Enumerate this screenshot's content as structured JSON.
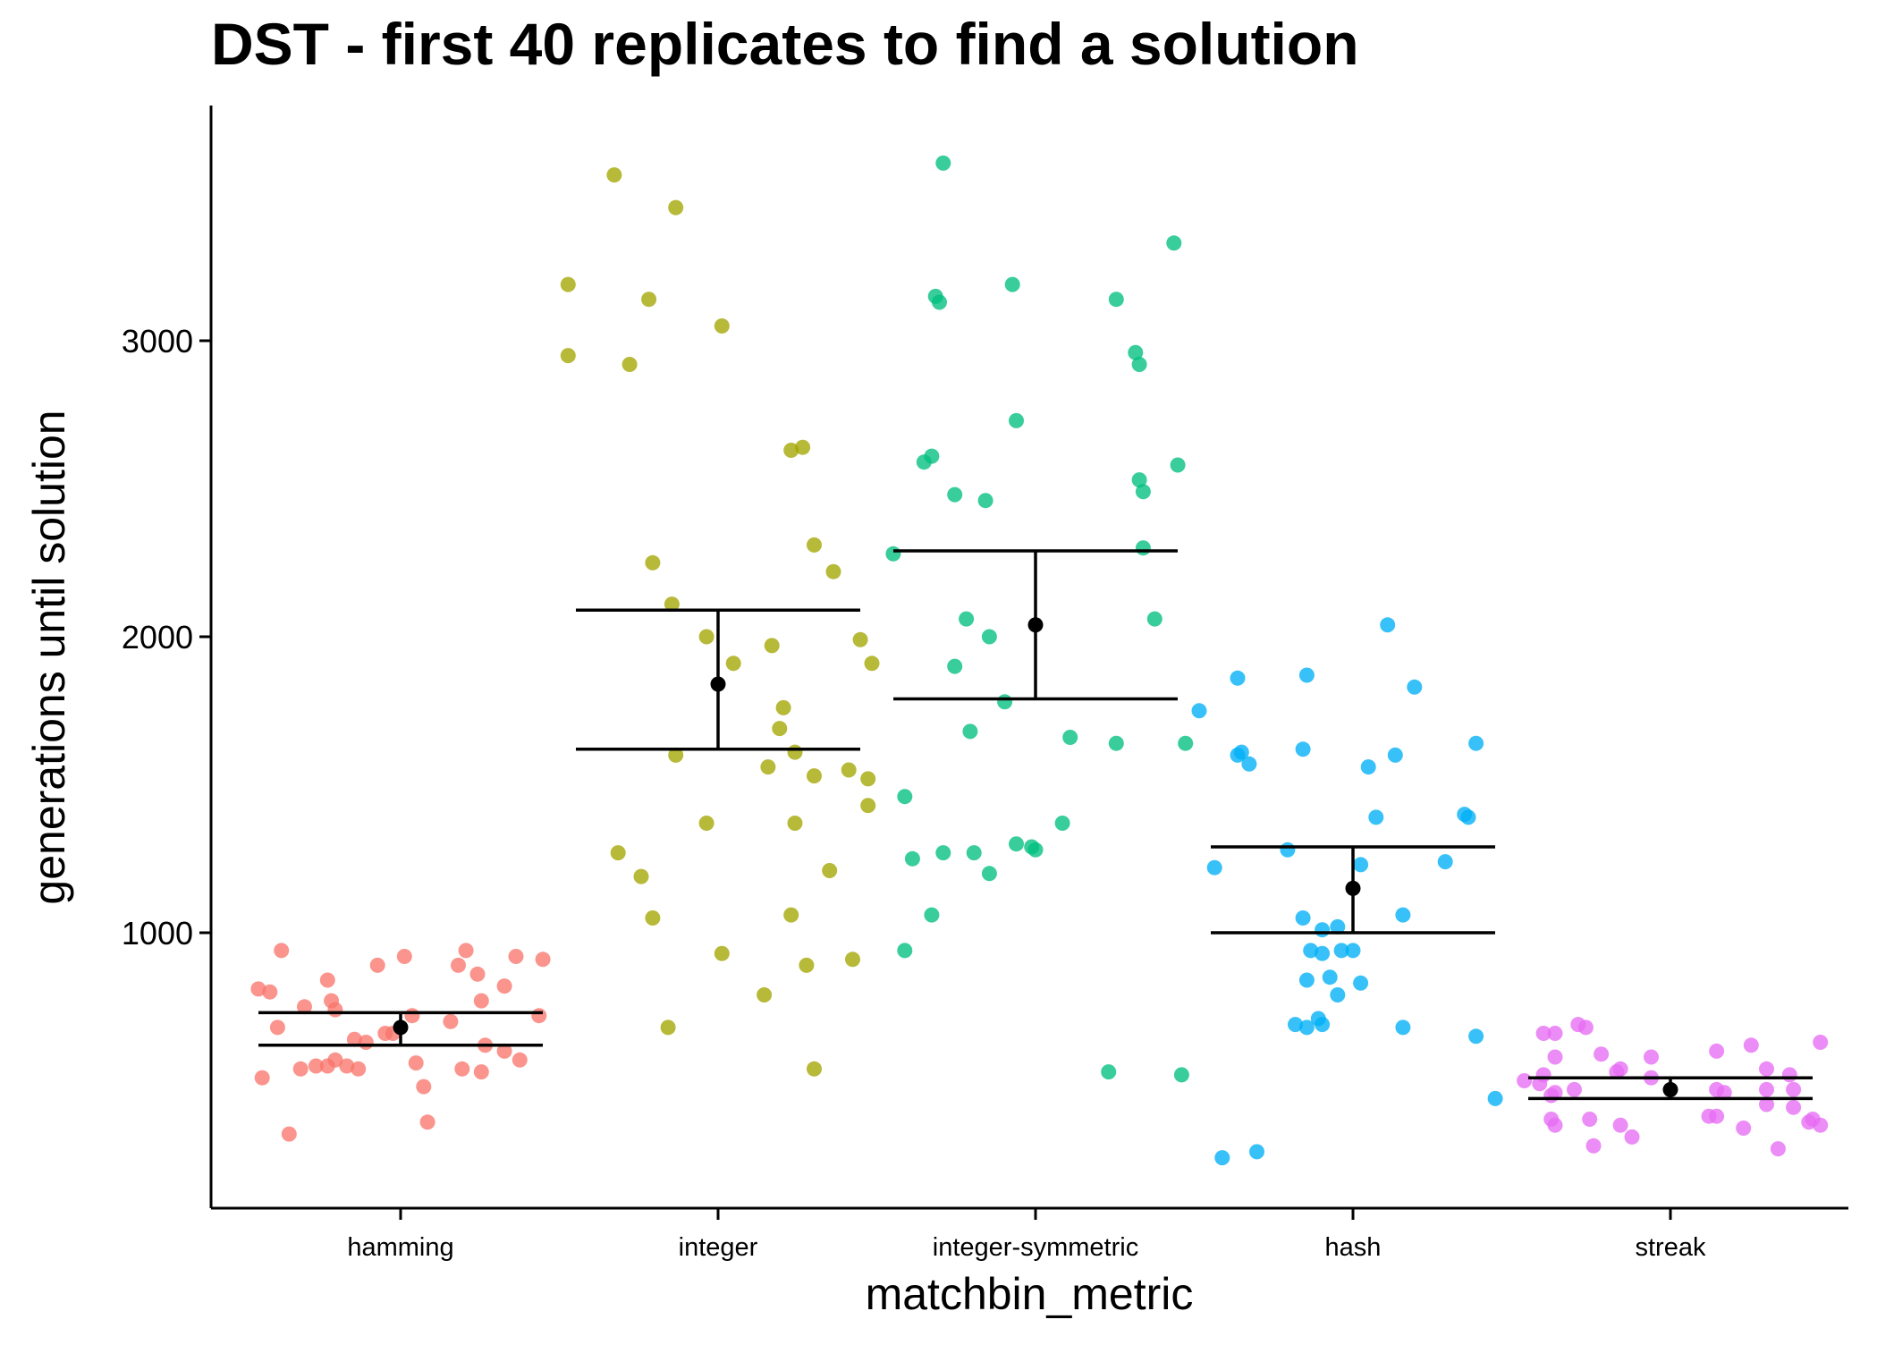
{
  "chart_data": {
    "type": "scatter",
    "title": "DST - first 40 replicates to find a solution",
    "xlabel": "matchbin_metric",
    "ylabel": "generations until solution",
    "categories": [
      "hamming",
      "integer",
      "integer-symmetric",
      "hash",
      "streak"
    ],
    "yticks": [
      1000,
      2000,
      3000
    ],
    "ylim": [
      90,
      3800
    ],
    "grid": false,
    "legend": "none",
    "series": [
      {
        "name": "hamming",
        "color": "#F8766D",
        "mean": 680,
        "ci_low": 620,
        "ci_high": 730,
        "points": [
          [
            -0.37,
            810
          ],
          [
            -0.34,
            800
          ],
          [
            -0.31,
            940
          ],
          [
            -0.32,
            680
          ],
          [
            -0.25,
            750
          ],
          [
            -0.19,
            840
          ],
          [
            -0.18,
            770
          ],
          [
            -0.17,
            740
          ],
          [
            -0.12,
            640
          ],
          [
            -0.09,
            630
          ],
          [
            -0.06,
            890
          ],
          [
            -0.04,
            660
          ],
          [
            0.01,
            920
          ],
          [
            0.03,
            720
          ],
          [
            0.15,
            890
          ],
          [
            0.17,
            940
          ],
          [
            0.2,
            860
          ],
          [
            0.21,
            770
          ],
          [
            0.27,
            820
          ],
          [
            0.3,
            920
          ],
          [
            0.36,
            720
          ],
          [
            0.37,
            910
          ],
          [
            -0.36,
            510
          ],
          [
            -0.29,
            320
          ],
          [
            -0.26,
            540
          ],
          [
            -0.22,
            550
          ],
          [
            -0.19,
            550
          ],
          [
            -0.17,
            570
          ],
          [
            -0.14,
            550
          ],
          [
            -0.11,
            540
          ],
          [
            -0.02,
            660
          ],
          [
            0.04,
            560
          ],
          [
            0.06,
            480
          ],
          [
            0.07,
            360
          ],
          [
            0.13,
            700
          ],
          [
            0.16,
            540
          ],
          [
            0.21,
            530
          ],
          [
            0.22,
            620
          ],
          [
            0.27,
            600
          ],
          [
            0.31,
            570
          ]
        ]
      },
      {
        "name": "integer",
        "color": "#A3A500",
        "mean": 1840,
        "ci_low": 1620,
        "ci_high": 2090,
        "points": [
          [
            -0.39,
            3190
          ],
          [
            -0.39,
            2950
          ],
          [
            -0.27,
            3560
          ],
          [
            -0.23,
            2920
          ],
          [
            -0.18,
            3140
          ],
          [
            -0.11,
            3450
          ],
          [
            -0.17,
            2250
          ],
          [
            -0.12,
            2110
          ],
          [
            0.01,
            3050
          ],
          [
            0.19,
            2630
          ],
          [
            0.22,
            2640
          ],
          [
            0.25,
            2310
          ],
          [
            0.3,
            2220
          ],
          [
            0.37,
            1990
          ],
          [
            0.4,
            1910
          ],
          [
            -0.03,
            2000
          ],
          [
            0.04,
            1910
          ],
          [
            0.14,
            1970
          ],
          [
            0.17,
            1760
          ],
          [
            0.16,
            1690
          ],
          [
            0.2,
            1610
          ],
          [
            -0.11,
            1600
          ],
          [
            0.13,
            1560
          ],
          [
            0.25,
            1530
          ],
          [
            0.34,
            1550
          ],
          [
            0.39,
            1520
          ],
          [
            0.39,
            1430
          ],
          [
            -0.03,
            1370
          ],
          [
            0.2,
            1370
          ],
          [
            -0.26,
            1270
          ],
          [
            -0.2,
            1190
          ],
          [
            0.29,
            1210
          ],
          [
            -0.17,
            1050
          ],
          [
            0.19,
            1060
          ],
          [
            0.01,
            930
          ],
          [
            0.23,
            890
          ],
          [
            0.35,
            910
          ],
          [
            0.12,
            790
          ],
          [
            -0.13,
            680
          ],
          [
            0.25,
            540
          ]
        ]
      },
      {
        "name": "integer-symmetric",
        "color": "#00BF7D",
        "mean": 2040,
        "ci_low": 1790,
        "ci_high": 2290,
        "points": [
          [
            -0.24,
            3600
          ],
          [
            -0.25,
            3130
          ],
          [
            -0.26,
            3150
          ],
          [
            -0.06,
            3190
          ],
          [
            0.21,
            3140
          ],
          [
            0.36,
            3330
          ],
          [
            0.27,
            2920
          ],
          [
            0.26,
            2960
          ],
          [
            -0.05,
            2730
          ],
          [
            -0.29,
            2590
          ],
          [
            -0.27,
            2610
          ],
          [
            0.27,
            2530
          ],
          [
            0.37,
            2580
          ],
          [
            0.28,
            2490
          ],
          [
            -0.21,
            2480
          ],
          [
            -0.13,
            2460
          ],
          [
            -0.37,
            2280
          ],
          [
            0.28,
            2300
          ],
          [
            0.31,
            2060
          ],
          [
            -0.18,
            2060
          ],
          [
            -0.12,
            2000
          ],
          [
            -0.21,
            1900
          ],
          [
            -0.08,
            1780
          ],
          [
            -0.17,
            1680
          ],
          [
            0.09,
            1660
          ],
          [
            0.21,
            1640
          ],
          [
            0.39,
            1640
          ],
          [
            -0.34,
            1460
          ],
          [
            -0.32,
            1250
          ],
          [
            -0.24,
            1270
          ],
          [
            -0.16,
            1270
          ],
          [
            -0.12,
            1200
          ],
          [
            -0.05,
            1300
          ],
          [
            -0.01,
            1290
          ],
          [
            0.0,
            1280
          ],
          [
            0.07,
            1370
          ],
          [
            -0.27,
            1060
          ],
          [
            -0.34,
            940
          ],
          [
            0.19,
            530
          ],
          [
            0.38,
            520
          ]
        ]
      },
      {
        "name": "hash",
        "color": "#00B0F6",
        "mean": 1150,
        "ci_low": 1000,
        "ci_high": 1290,
        "points": [
          [
            0.09,
            2040
          ],
          [
            -0.3,
            1860
          ],
          [
            -0.12,
            1870
          ],
          [
            0.16,
            1830
          ],
          [
            -0.4,
            1750
          ],
          [
            -0.29,
            1610
          ],
          [
            -0.27,
            1570
          ],
          [
            -0.13,
            1620
          ],
          [
            0.11,
            1600
          ],
          [
            0.32,
            1640
          ],
          [
            0.04,
            1560
          ],
          [
            -0.3,
            1600
          ],
          [
            0.29,
            1400
          ],
          [
            0.06,
            1390
          ],
          [
            0.3,
            1390
          ],
          [
            -0.17,
            1280
          ],
          [
            -0.36,
            1220
          ],
          [
            0.24,
            1240
          ],
          [
            0.02,
            1230
          ],
          [
            -0.13,
            1050
          ],
          [
            -0.08,
            1010
          ],
          [
            -0.04,
            1020
          ],
          [
            0.13,
            1060
          ],
          [
            -0.11,
            940
          ],
          [
            -0.03,
            940
          ],
          [
            0.0,
            940
          ],
          [
            -0.08,
            930
          ],
          [
            -0.12,
            840
          ],
          [
            -0.09,
            710
          ],
          [
            -0.15,
            690
          ],
          [
            -0.08,
            690
          ],
          [
            -0.04,
            790
          ],
          [
            0.02,
            830
          ],
          [
            -0.12,
            680
          ],
          [
            0.13,
            680
          ],
          [
            0.32,
            650
          ],
          [
            0.37,
            440
          ],
          [
            -0.34,
            240
          ],
          [
            -0.25,
            260
          ],
          [
            -0.06,
            850
          ]
        ]
      },
      {
        "name": "streak",
        "color": "#E76BF3",
        "mean": 470,
        "ci_low": 440,
        "ci_high": 510,
        "points": [
          [
            -0.38,
            500
          ],
          [
            -0.33,
            660
          ],
          [
            -0.3,
            660
          ],
          [
            -0.33,
            520
          ],
          [
            -0.3,
            580
          ],
          [
            -0.24,
            690
          ],
          [
            -0.22,
            680
          ],
          [
            -0.18,
            590
          ],
          [
            -0.14,
            530
          ],
          [
            -0.13,
            540
          ],
          [
            -0.05,
            580
          ],
          [
            0.12,
            600
          ],
          [
            0.21,
            620
          ],
          [
            0.25,
            540
          ],
          [
            0.31,
            520
          ],
          [
            0.39,
            630
          ],
          [
            -0.34,
            490
          ],
          [
            -0.3,
            460
          ],
          [
            -0.25,
            470
          ],
          [
            -0.31,
            450
          ],
          [
            -0.31,
            370
          ],
          [
            -0.3,
            350
          ],
          [
            -0.21,
            370
          ],
          [
            -0.13,
            350
          ],
          [
            -0.1,
            310
          ],
          [
            -0.05,
            510
          ],
          [
            0.1,
            380
          ],
          [
            0.12,
            380
          ],
          [
            0.12,
            470
          ],
          [
            0.14,
            460
          ],
          [
            0.19,
            340
          ],
          [
            0.25,
            420
          ],
          [
            0.25,
            470
          ],
          [
            0.32,
            410
          ],
          [
            0.32,
            470
          ],
          [
            0.37,
            370
          ],
          [
            0.36,
            360
          ],
          [
            0.39,
            350
          ],
          [
            -0.2,
            280
          ],
          [
            0.28,
            270
          ]
        ]
      }
    ]
  }
}
